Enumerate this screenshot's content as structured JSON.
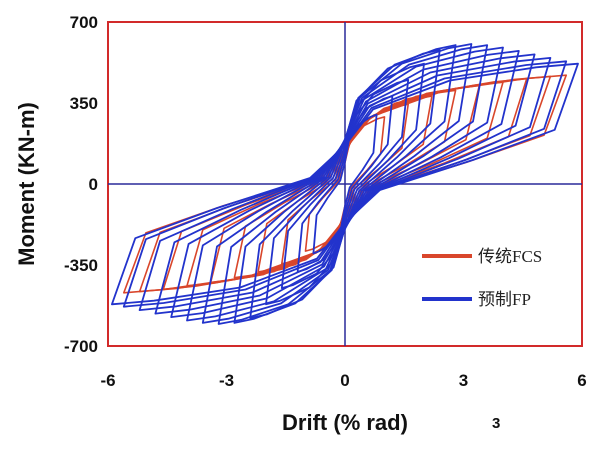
{
  "chart_data": {
    "type": "line",
    "title": "",
    "xlabel": "Drift (% rad)",
    "ylabel": "Moment (KN-m)",
    "xlim": [
      -6,
      6
    ],
    "ylim": [
      -700,
      700
    ],
    "x_ticks": [
      "-6",
      "-3",
      "0",
      "3",
      "6"
    ],
    "y_ticks": [
      "700",
      "350",
      "0",
      "-350",
      "-700"
    ],
    "legend_position": "bottom-right",
    "side_note": "3",
    "colors": {
      "frame": "#d22a2a",
      "axes": "#2a2a9a"
    },
    "series": [
      {
        "name": "传统FCS",
        "color": "#d9462b",
        "loops": [
          {
            "amp": 1.0,
            "peak": 290,
            "ratio": 0.55
          },
          {
            "amp": 1.6,
            "peak": 345,
            "ratio": 0.6
          },
          {
            "amp": 2.2,
            "peak": 380,
            "ratio": 0.64
          },
          {
            "amp": 2.8,
            "peak": 405,
            "ratio": 0.67
          },
          {
            "amp": 3.4,
            "peak": 425,
            "ratio": 0.7
          },
          {
            "amp": 4.0,
            "peak": 440,
            "ratio": 0.72
          },
          {
            "amp": 4.6,
            "peak": 455,
            "ratio": 0.74
          },
          {
            "amp": 5.2,
            "peak": 465,
            "ratio": 0.76
          },
          {
            "amp": 5.6,
            "peak": 470,
            "ratio": 0.77
          }
        ]
      },
      {
        "name": "预制FP",
        "color": "#2233cc",
        "loops": [
          {
            "amp": 0.8,
            "peak": 300,
            "ratio": 0.5
          },
          {
            "amp": 1.2,
            "peak": 380,
            "ratio": 0.55
          },
          {
            "amp": 1.6,
            "peak": 450,
            "ratio": 0.58
          },
          {
            "amp": 2.0,
            "peak": 520,
            "ratio": 0.6
          },
          {
            "amp": 2.4,
            "peak": 580,
            "ratio": 0.62
          },
          {
            "amp": 2.8,
            "peak": 600,
            "ratio": 0.64
          },
          {
            "amp": 3.2,
            "peak": 605,
            "ratio": 0.66
          },
          {
            "amp": 3.6,
            "peak": 600,
            "ratio": 0.68
          },
          {
            "amp": 4.0,
            "peak": 590,
            "ratio": 0.7
          },
          {
            "amp": 4.4,
            "peak": 575,
            "ratio": 0.72
          },
          {
            "amp": 4.8,
            "peak": 560,
            "ratio": 0.74
          },
          {
            "amp": 5.2,
            "peak": 545,
            "ratio": 0.75
          },
          {
            "amp": 5.6,
            "peak": 530,
            "ratio": 0.76
          },
          {
            "amp": 5.9,
            "peak": 520,
            "ratio": 0.77
          }
        ]
      }
    ]
  }
}
